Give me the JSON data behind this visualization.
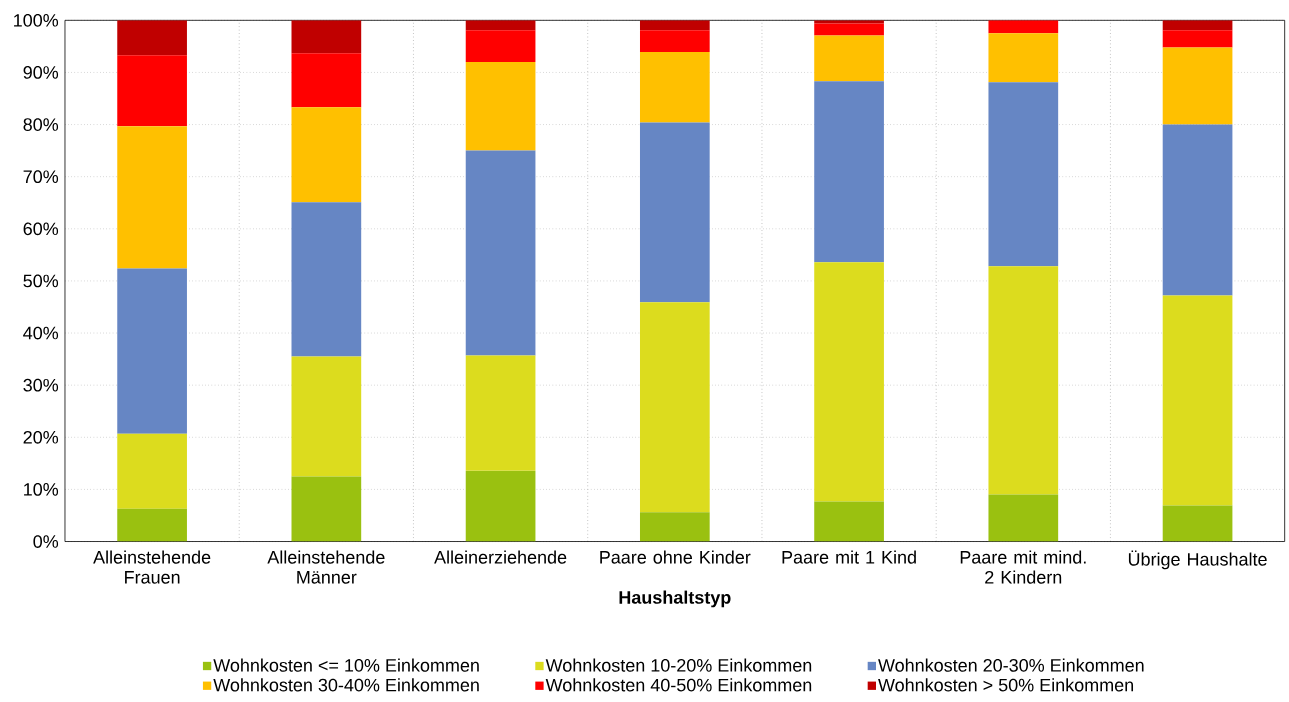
{
  "chart_data": {
    "type": "bar",
    "stacked": true,
    "xlabel": "Haushaltstyp",
    "categories": [
      "Alleinstehende Frauen",
      "Alleinstehende Männer",
      "Alleinerziehende",
      "Paare ohne Kinder",
      "Paare mit 1 Kind",
      "Paare mit mind. 2 Kindern",
      "Übrige Haushalte"
    ],
    "series": [
      {
        "name": "Wohnkosten <= 10% Einkommen",
        "color": "#9ac110",
        "values": [
          6.3,
          12.5,
          13.6,
          5.6,
          7.7,
          9.0,
          6.9
        ]
      },
      {
        "name": "Wohnkosten 10-20% Einkommen",
        "color": "#dcdc1e",
        "values": [
          14.4,
          23.0,
          22.1,
          40.3,
          45.9,
          43.8,
          40.3
        ]
      },
      {
        "name": "Wohnkosten 20-30% Einkommen",
        "color": "#6686c4",
        "values": [
          31.7,
          29.6,
          39.3,
          34.5,
          34.7,
          35.3,
          32.8
        ]
      },
      {
        "name": "Wohnkosten 30-40% Einkommen",
        "color": "#ffc000",
        "values": [
          27.3,
          18.2,
          17.0,
          13.5,
          8.8,
          9.4,
          14.8
        ]
      },
      {
        "name": "Wohnkosten 40-50% Einkommen",
        "color": "#ff0000",
        "values": [
          13.6,
          10.4,
          6.1,
          4.2,
          2.3,
          2.5,
          3.3
        ]
      },
      {
        "name": "Wohnkosten > 50% Einkommen",
        "color": "#c00000",
        "values": [
          6.7,
          6.3,
          1.9,
          1.9,
          0.6,
          0.0,
          1.9
        ]
      }
    ],
    "ylim": [
      0,
      100
    ],
    "yticks": [
      {
        "value": 0,
        "label": "0%"
      },
      {
        "value": 10,
        "label": "10%"
      },
      {
        "value": 20,
        "label": "20%"
      },
      {
        "value": 30,
        "label": "30%"
      },
      {
        "value": 40,
        "label": "40%"
      },
      {
        "value": 50,
        "label": "50%"
      },
      {
        "value": 60,
        "label": "60%"
      },
      {
        "value": 70,
        "label": "70%"
      },
      {
        "value": 80,
        "label": "80%"
      },
      {
        "value": 90,
        "label": "90%"
      },
      {
        "value": 100,
        "label": "100%"
      }
    ],
    "grid": true,
    "legend": "bottom"
  }
}
